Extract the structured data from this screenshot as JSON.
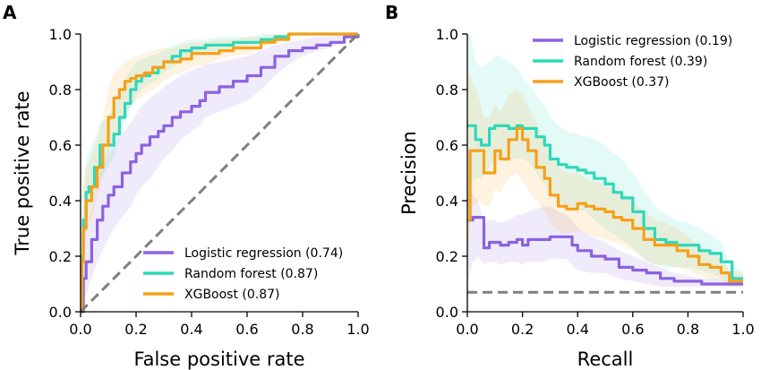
{
  "colors": {
    "logistic": "#8c62e0",
    "random_forest": "#2ed8b8",
    "xgboost": "#f5a01a",
    "baseline": "#7f7f7f"
  },
  "chart_data": [
    {
      "type": "line",
      "panel_letter": "A",
      "xlabel": "False positive rate",
      "ylabel": "True positive rate",
      "xlim": [
        0,
        1
      ],
      "ylim": [
        0,
        1
      ],
      "xticks": [
        "0.0",
        "0.2",
        "0.4",
        "0.6",
        "0.8",
        "1.0"
      ],
      "yticks": [
        "0.0",
        "0.2",
        "0.4",
        "0.6",
        "0.8",
        "1.0"
      ],
      "legend_position": "lower-right",
      "baseline": {
        "style": "dashed",
        "x": [
          0,
          1
        ],
        "y": [
          0,
          1
        ]
      },
      "series": [
        {
          "name": "Logistic regression (0.74)",
          "color_key": "logistic",
          "x": [
            0,
            0.01,
            0.02,
            0.04,
            0.06,
            0.08,
            0.1,
            0.12,
            0.15,
            0.18,
            0.2,
            0.22,
            0.25,
            0.28,
            0.3,
            0.33,
            0.36,
            0.4,
            0.43,
            0.45,
            0.5,
            0.55,
            0.6,
            0.65,
            0.7,
            0.75,
            0.8,
            0.85,
            0.9,
            0.95,
            1.0
          ],
          "y": [
            0,
            0.12,
            0.18,
            0.26,
            0.33,
            0.38,
            0.42,
            0.45,
            0.5,
            0.54,
            0.57,
            0.6,
            0.63,
            0.65,
            0.67,
            0.7,
            0.72,
            0.74,
            0.76,
            0.79,
            0.81,
            0.83,
            0.85,
            0.88,
            0.92,
            0.94,
            0.95,
            0.96,
            0.97,
            0.99,
            1.0
          ],
          "band_lower": [
            0,
            0.02,
            0.06,
            0.12,
            0.18,
            0.22,
            0.26,
            0.3,
            0.34,
            0.38,
            0.42,
            0.45,
            0.48,
            0.52,
            0.55,
            0.58,
            0.62,
            0.65,
            0.67,
            0.7,
            0.72,
            0.74,
            0.76,
            0.8,
            0.85,
            0.89,
            0.92,
            0.94,
            0.95,
            0.98,
            1.0
          ],
          "band_upper": [
            0.05,
            0.22,
            0.3,
            0.38,
            0.46,
            0.52,
            0.56,
            0.6,
            0.64,
            0.68,
            0.71,
            0.74,
            0.77,
            0.79,
            0.81,
            0.83,
            0.85,
            0.87,
            0.88,
            0.89,
            0.9,
            0.91,
            0.92,
            0.94,
            0.96,
            0.97,
            0.98,
            0.99,
            0.99,
            1.0,
            1.0
          ]
        },
        {
          "name": "Random forest (0.87)",
          "color_key": "random_forest",
          "x": [
            0,
            0.005,
            0.01,
            0.02,
            0.03,
            0.05,
            0.07,
            0.1,
            0.12,
            0.14,
            0.16,
            0.18,
            0.2,
            0.22,
            0.25,
            0.28,
            0.3,
            0.33,
            0.36,
            0.4,
            0.45,
            0.5,
            0.55,
            0.6,
            0.65,
            0.7,
            0.75,
            0.8,
            0.9,
            1.0
          ],
          "y": [
            0,
            0.2,
            0.33,
            0.43,
            0.45,
            0.52,
            0.6,
            0.6,
            0.64,
            0.7,
            0.75,
            0.8,
            0.83,
            0.85,
            0.86,
            0.88,
            0.9,
            0.92,
            0.94,
            0.95,
            0.96,
            0.96,
            0.97,
            0.97,
            0.98,
            0.99,
            1.0,
            1.0,
            1.0,
            1.0
          ],
          "band_lower": [
            0,
            0.1,
            0.2,
            0.3,
            0.35,
            0.42,
            0.48,
            0.52,
            0.56,
            0.62,
            0.68,
            0.73,
            0.77,
            0.8,
            0.82,
            0.84,
            0.86,
            0.88,
            0.9,
            0.92,
            0.93,
            0.94,
            0.95,
            0.96,
            0.97,
            0.98,
            0.99,
            1.0,
            1.0,
            1.0
          ],
          "band_upper": [
            0.1,
            0.3,
            0.45,
            0.55,
            0.58,
            0.62,
            0.68,
            0.7,
            0.75,
            0.8,
            0.84,
            0.87,
            0.9,
            0.91,
            0.92,
            0.93,
            0.94,
            0.96,
            0.97,
            0.98,
            0.98,
            0.99,
            0.99,
            0.99,
            1.0,
            1.0,
            1.0,
            1.0,
            1.0,
            1.0
          ]
        },
        {
          "name": "XGBoost (0.87)",
          "color_key": "xgboost",
          "x": [
            0,
            0.005,
            0.01,
            0.02,
            0.04,
            0.06,
            0.08,
            0.1,
            0.12,
            0.14,
            0.16,
            0.18,
            0.2,
            0.23,
            0.26,
            0.3,
            0.33,
            0.36,
            0.4,
            0.45,
            0.5,
            0.55,
            0.6,
            0.65,
            0.7,
            0.75,
            0.8,
            0.9,
            1.0
          ],
          "y": [
            0,
            0.18,
            0.3,
            0.4,
            0.45,
            0.52,
            0.6,
            0.7,
            0.77,
            0.8,
            0.83,
            0.84,
            0.85,
            0.86,
            0.88,
            0.9,
            0.9,
            0.91,
            0.93,
            0.93,
            0.94,
            0.95,
            0.95,
            0.97,
            0.98,
            1.0,
            1.0,
            1.0,
            1.0
          ],
          "band_lower": [
            0,
            0.08,
            0.18,
            0.28,
            0.34,
            0.42,
            0.48,
            0.56,
            0.62,
            0.67,
            0.71,
            0.74,
            0.76,
            0.78,
            0.8,
            0.83,
            0.85,
            0.86,
            0.88,
            0.89,
            0.91,
            0.92,
            0.93,
            0.95,
            0.97,
            0.99,
            1.0,
            1.0,
            1.0
          ],
          "band_upper": [
            0.08,
            0.3,
            0.42,
            0.52,
            0.56,
            0.62,
            0.7,
            0.8,
            0.86,
            0.88,
            0.9,
            0.91,
            0.92,
            0.93,
            0.94,
            0.95,
            0.95,
            0.96,
            0.97,
            0.97,
            0.98,
            0.98,
            0.99,
            0.99,
            1.0,
            1.0,
            1.0,
            1.0,
            1.0
          ]
        }
      ]
    },
    {
      "type": "line",
      "panel_letter": "B",
      "xlabel": "Recall",
      "ylabel": "Precision",
      "xlim": [
        0,
        1
      ],
      "ylim": [
        0,
        1
      ],
      "xticks": [
        "0.0",
        "0.2",
        "0.4",
        "0.6",
        "0.8",
        "1.0"
      ],
      "yticks": [
        "0.0",
        "0.2",
        "0.4",
        "0.6",
        "0.8",
        "1.0"
      ],
      "legend_position": "top-right",
      "baseline": {
        "style": "dashed",
        "x": [
          0,
          1
        ],
        "y": [
          0.07,
          0.07
        ]
      },
      "series": [
        {
          "name": "Logistic regression (0.19)",
          "color_key": "logistic",
          "x": [
            0,
            0.02,
            0.04,
            0.06,
            0.08,
            0.1,
            0.12,
            0.15,
            0.18,
            0.2,
            0.22,
            0.25,
            0.28,
            0.3,
            0.33,
            0.36,
            0.38,
            0.4,
            0.45,
            0.5,
            0.55,
            0.6,
            0.65,
            0.7,
            0.75,
            0.8,
            0.85,
            0.9,
            0.95,
            1.0
          ],
          "y": [
            0.33,
            0.34,
            0.34,
            0.23,
            0.25,
            0.25,
            0.24,
            0.25,
            0.26,
            0.24,
            0.26,
            0.26,
            0.26,
            0.27,
            0.27,
            0.27,
            0.24,
            0.22,
            0.2,
            0.19,
            0.16,
            0.15,
            0.14,
            0.12,
            0.11,
            0.11,
            0.1,
            0.1,
            0.1,
            0.1
          ],
          "band_lower": [
            0.1,
            0.18,
            0.2,
            0.17,
            0.18,
            0.18,
            0.17,
            0.18,
            0.18,
            0.17,
            0.18,
            0.18,
            0.18,
            0.19,
            0.19,
            0.19,
            0.17,
            0.15,
            0.14,
            0.14,
            0.12,
            0.11,
            0.1,
            0.09,
            0.09,
            0.09,
            0.09,
            0.09,
            0.09,
            0.09
          ],
          "band_upper": [
            0.5,
            0.42,
            0.4,
            0.32,
            0.33,
            0.33,
            0.32,
            0.33,
            0.35,
            0.35,
            0.36,
            0.37,
            0.38,
            0.38,
            0.36,
            0.35,
            0.33,
            0.3,
            0.27,
            0.25,
            0.22,
            0.2,
            0.18,
            0.16,
            0.14,
            0.13,
            0.12,
            0.12,
            0.11,
            0.11
          ]
        },
        {
          "name": "Random forest (0.39)",
          "color_key": "random_forest",
          "x": [
            0,
            0.01,
            0.03,
            0.05,
            0.08,
            0.1,
            0.12,
            0.15,
            0.18,
            0.2,
            0.22,
            0.25,
            0.28,
            0.3,
            0.33,
            0.36,
            0.4,
            0.43,
            0.46,
            0.5,
            0.53,
            0.56,
            0.6,
            0.64,
            0.68,
            0.72,
            0.76,
            0.8,
            0.84,
            0.88,
            0.92,
            0.96,
            1.0
          ],
          "y": [
            0.67,
            0.67,
            0.62,
            0.6,
            0.66,
            0.67,
            0.67,
            0.66,
            0.67,
            0.66,
            0.66,
            0.63,
            0.6,
            0.55,
            0.53,
            0.52,
            0.51,
            0.5,
            0.48,
            0.46,
            0.43,
            0.41,
            0.36,
            0.3,
            0.26,
            0.25,
            0.24,
            0.24,
            0.22,
            0.21,
            0.18,
            0.12,
            0.12
          ],
          "band_lower": [
            0.3,
            0.45,
            0.48,
            0.48,
            0.52,
            0.54,
            0.55,
            0.55,
            0.55,
            0.55,
            0.54,
            0.5,
            0.46,
            0.42,
            0.4,
            0.38,
            0.37,
            0.36,
            0.33,
            0.3,
            0.28,
            0.26,
            0.23,
            0.19,
            0.17,
            0.16,
            0.16,
            0.16,
            0.15,
            0.14,
            0.12,
            0.1,
            0.1
          ],
          "band_upper": [
            1.0,
            1.0,
            0.9,
            0.88,
            0.9,
            0.92,
            0.92,
            0.9,
            0.88,
            0.85,
            0.82,
            0.78,
            0.74,
            0.7,
            0.67,
            0.65,
            0.64,
            0.63,
            0.62,
            0.6,
            0.57,
            0.55,
            0.5,
            0.44,
            0.38,
            0.35,
            0.33,
            0.32,
            0.3,
            0.28,
            0.25,
            0.16,
            0.15
          ]
        },
        {
          "name": "XGBoost (0.37)",
          "color_key": "xgboost",
          "x": [
            0,
            0.01,
            0.02,
            0.04,
            0.06,
            0.08,
            0.1,
            0.12,
            0.15,
            0.18,
            0.2,
            0.22,
            0.25,
            0.28,
            0.3,
            0.33,
            0.36,
            0.4,
            0.43,
            0.46,
            0.5,
            0.53,
            0.56,
            0.6,
            0.64,
            0.68,
            0.72,
            0.76,
            0.8,
            0.84,
            0.88,
            0.92,
            0.95,
            1.0
          ],
          "y": [
            0.33,
            0.58,
            0.58,
            0.58,
            0.5,
            0.5,
            0.58,
            0.55,
            0.62,
            0.66,
            0.62,
            0.58,
            0.52,
            0.48,
            0.42,
            0.38,
            0.37,
            0.39,
            0.38,
            0.37,
            0.36,
            0.34,
            0.33,
            0.3,
            0.26,
            0.24,
            0.24,
            0.22,
            0.2,
            0.17,
            0.16,
            0.14,
            0.11,
            0.11
          ],
          "band_lower": [
            0.0,
            0.3,
            0.38,
            0.4,
            0.38,
            0.38,
            0.44,
            0.43,
            0.48,
            0.5,
            0.47,
            0.44,
            0.4,
            0.36,
            0.32,
            0.29,
            0.28,
            0.29,
            0.28,
            0.27,
            0.26,
            0.25,
            0.24,
            0.22,
            0.19,
            0.17,
            0.17,
            0.16,
            0.15,
            0.13,
            0.12,
            0.11,
            0.09,
            0.09
          ],
          "band_upper": [
            0.85,
            0.85,
            0.82,
            0.78,
            0.7,
            0.7,
            0.75,
            0.72,
            0.78,
            0.8,
            0.78,
            0.74,
            0.68,
            0.62,
            0.56,
            0.52,
            0.5,
            0.5,
            0.48,
            0.47,
            0.46,
            0.44,
            0.43,
            0.4,
            0.36,
            0.33,
            0.32,
            0.3,
            0.27,
            0.24,
            0.22,
            0.19,
            0.15,
            0.14
          ]
        }
      ]
    }
  ]
}
